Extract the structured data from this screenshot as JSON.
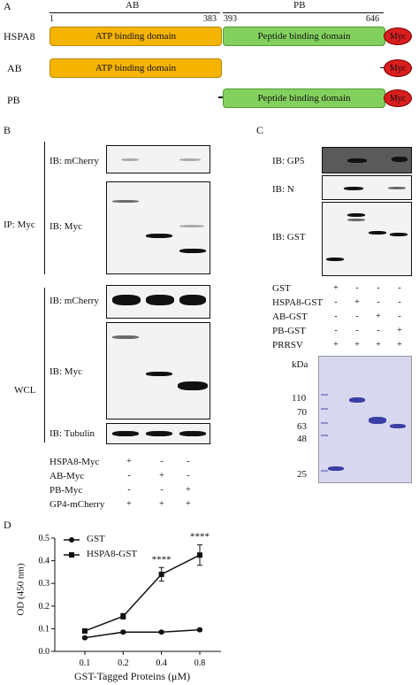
{
  "panelA": {
    "letter": "A",
    "label_ab_top": "AB",
    "label_pb_top": "PB",
    "n1": "1",
    "n383": "383",
    "n393": "393",
    "n646": "646",
    "rows": [
      {
        "name": "HSPA8"
      },
      {
        "name": "AB"
      },
      {
        "name": "PB"
      }
    ],
    "atp": "ATP binding domain",
    "peptide": "Peptide binding domain",
    "myc": "Myc"
  },
  "panelB": {
    "letter": "B",
    "ip_label": "IP: Myc",
    "wcl_label": "WCL",
    "ib_mcherry": "IB: mCherry",
    "ib_myc": "IB: Myc",
    "ib_tubulin": "IB: Tubulin",
    "rows": [
      {
        "label": "HSPA8-Myc",
        "signs": [
          "+",
          "-",
          "-"
        ]
      },
      {
        "label": "AB-Myc",
        "signs": [
          "-",
          "+",
          "-"
        ]
      },
      {
        "label": "PB-Myc",
        "signs": [
          "-",
          "-",
          "+"
        ]
      },
      {
        "label": "GP4-mCherry",
        "signs": [
          "+",
          "+",
          "+"
        ]
      }
    ]
  },
  "panelC": {
    "letter": "C",
    "ib_gp5": "IB: GP5",
    "ib_n": "IB: N",
    "ib_gst": "IB: GST",
    "rows": [
      {
        "label": "GST",
        "signs": [
          "+",
          "-",
          "-",
          "-"
        ]
      },
      {
        "label": "HSPA8-GST",
        "signs": [
          "-",
          "+",
          "-",
          "-"
        ]
      },
      {
        "label": "AB-GST",
        "signs": [
          "-",
          "-",
          "+",
          "-"
        ]
      },
      {
        "label": "PB-GST",
        "signs": [
          "-",
          "-",
          "-",
          "+"
        ]
      },
      {
        "label": "PRRSV",
        "signs": [
          "+",
          "+",
          "+",
          "+"
        ]
      }
    ],
    "kda": "kDa",
    "markers": [
      "110",
      "70",
      "63",
      "48",
      "25"
    ]
  },
  "panelD": {
    "letter": "D",
    "chart_data": {
      "type": "line",
      "x": [
        "0.1",
        "0.2",
        "0.4",
        "0.8"
      ],
      "series": [
        {
          "name": "GST",
          "marker": "circle",
          "values": [
            0.06,
            0.085,
            0.085,
            0.095
          ],
          "errors": [
            0.005,
            0.005,
            0.005,
            0.005
          ]
        },
        {
          "name": "HSPA8-GST",
          "marker": "square",
          "values": [
            0.09,
            0.155,
            0.34,
            0.425
          ],
          "errors": [
            0.008,
            0.012,
            0.03,
            0.045
          ]
        }
      ],
      "annotations": [
        {
          "x": "0.4",
          "text": "****"
        },
        {
          "x": "0.8",
          "text": "****"
        }
      ],
      "xlabel": "GST-Tagged Proteins (μM)",
      "ylabel": "OD (450 nm)",
      "ylim": [
        0.0,
        0.5
      ],
      "yticks": [
        "0.0",
        "0.1",
        "0.2",
        "0.3",
        "0.4",
        "0.5"
      ]
    }
  }
}
